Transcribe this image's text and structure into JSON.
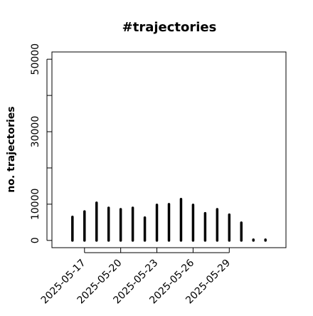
{
  "chart_data": {
    "type": "bar",
    "style": "needle",
    "title": "#trajectories",
    "ylabel": "no. trajectories",
    "x": [
      "2025-05-16",
      "2025-05-17",
      "2025-05-18",
      "2025-05-19",
      "2025-05-20",
      "2025-05-21",
      "2025-05-22",
      "2025-05-23",
      "2025-05-24",
      "2025-05-25",
      "2025-05-26",
      "2025-05-27",
      "2025-05-28",
      "2025-05-29",
      "2025-05-30",
      "2025-05-31",
      "2025-06-01"
    ],
    "values": [
      6500,
      8000,
      10400,
      9000,
      8600,
      9000,
      6300,
      9800,
      10000,
      11400,
      9800,
      7500,
      8600,
      7100,
      4900,
      200,
      200
    ],
    "color": "#000000",
    "ylim": [
      -2000,
      52000
    ],
    "yticks": [
      0,
      10000,
      30000,
      50000
    ],
    "yminor_ticks": [
      20000,
      40000
    ],
    "xticks": [
      "2025-05-17",
      "2025-05-20",
      "2025-05-23",
      "2025-05-26",
      "2025-05-29"
    ]
  }
}
